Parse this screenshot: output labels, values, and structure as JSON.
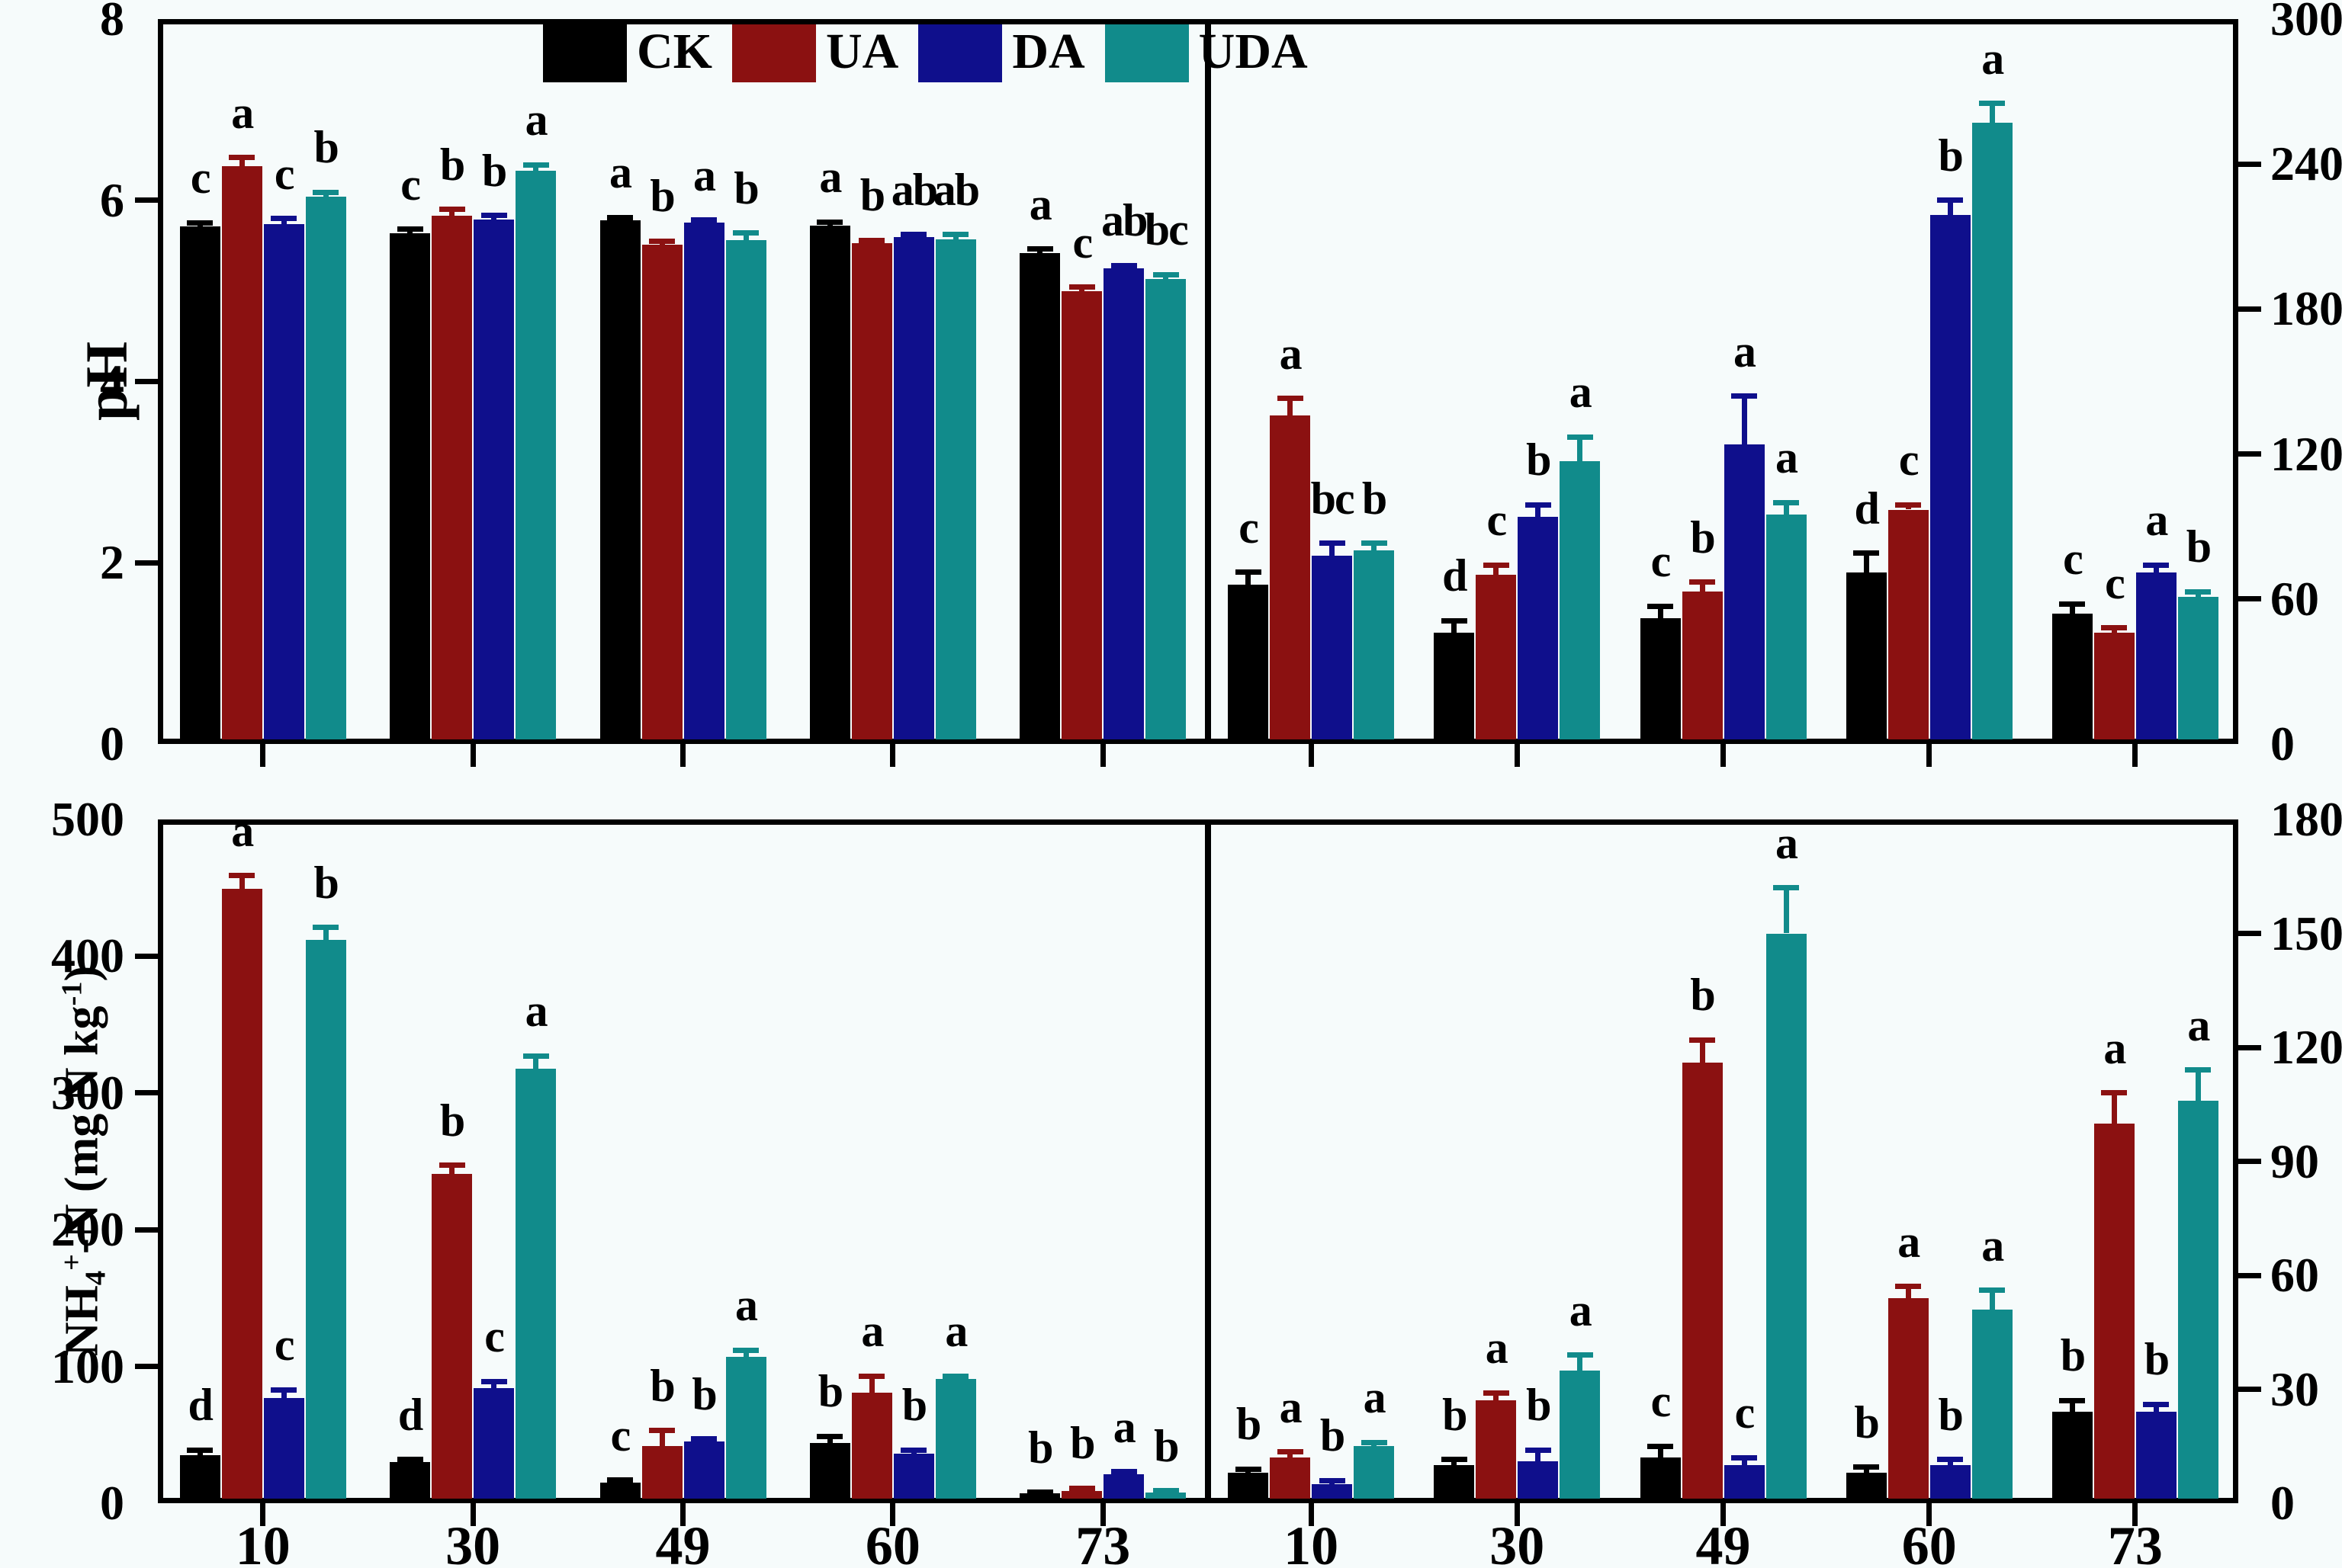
{
  "figure": {
    "background": "#f6fbfb",
    "frame_color": "#000000"
  },
  "legend": {
    "items": [
      {
        "label": "CK",
        "color": "#000000"
      },
      {
        "label": "UA",
        "color": "#8b1111"
      },
      {
        "label": "DA",
        "color": "#0f0f8c"
      },
      {
        "label": "UDA",
        "color": "#118b8b"
      }
    ]
  },
  "axes": {
    "ph_title": "pH",
    "nh4_title_parts": {
      "p1": "NH",
      "sub4": "4",
      "supPlus": "+",
      "p2": "-N (mg N kg",
      "supMinus1": "-1",
      "p3": ")"
    }
  },
  "chart_data": [
    {
      "type": "bar",
      "panel": "top-left",
      "ylabel": "pH",
      "categories": [
        "10",
        "30",
        "49",
        "60",
        "73"
      ],
      "ylim": [
        0,
        8
      ],
      "yticks": [
        0,
        2,
        4,
        6,
        8
      ],
      "ytick_side": "left",
      "series": [
        {
          "name": "CK",
          "color": "#000000",
          "values": [
            5.71,
            5.64,
            5.78,
            5.72,
            5.42
          ],
          "errors": [
            0.04,
            0.04,
            0.03,
            0.04,
            0.04
          ],
          "letters": [
            "c",
            "c",
            "a",
            "a",
            "a"
          ]
        },
        {
          "name": "UA",
          "color": "#8b1111",
          "values": [
            6.38,
            5.83,
            5.51,
            5.53,
            5.0
          ],
          "errors": [
            0.09,
            0.07,
            0.04,
            0.03,
            0.04
          ],
          "letters": [
            "a",
            "b",
            "b",
            "b",
            "c"
          ]
        },
        {
          "name": "DA",
          "color": "#0f0f8c",
          "values": [
            5.74,
            5.79,
            5.75,
            5.59,
            5.25
          ],
          "errors": [
            0.06,
            0.04,
            0.03,
            0.03,
            0.03
          ],
          "letters": [
            "c",
            "b",
            "a",
            "ab",
            "ab"
          ]
        },
        {
          "name": "UDA",
          "color": "#118b8b",
          "values": [
            6.04,
            6.33,
            5.56,
            5.57,
            5.13
          ],
          "errors": [
            0.05,
            0.06,
            0.08,
            0.05,
            0.05
          ],
          "letters": [
            "b",
            "a",
            "b",
            "ab",
            "bc"
          ]
        }
      ]
    },
    {
      "type": "bar",
      "panel": "top-right",
      "ylabel": "",
      "categories": [
        "10",
        "30",
        "49",
        "60",
        "73"
      ],
      "ylim": [
        0,
        300
      ],
      "yticks": [
        0,
        60,
        120,
        180,
        240,
        300
      ],
      "ytick_side": "right",
      "series": [
        {
          "name": "CK",
          "color": "#000000",
          "values": [
            66,
            46,
            52,
            71,
            54
          ],
          "errors": [
            5,
            5,
            5,
            8,
            4
          ],
          "letters": [
            "c",
            "d",
            "c",
            "d",
            "c"
          ]
        },
        {
          "name": "UA",
          "color": "#8b1111",
          "values": [
            136,
            70,
            63,
            97,
            46
          ],
          "errors": [
            7,
            4,
            4,
            2,
            2
          ],
          "letters": [
            "a",
            "c",
            "b",
            "c",
            "c"
          ]
        },
        {
          "name": "DA",
          "color": "#0f0f8c",
          "values": [
            78,
            94,
            124,
            219,
            71
          ],
          "errors": [
            5,
            5,
            20,
            6,
            3
          ],
          "letters": [
            "bc",
            "b",
            "a",
            "b",
            "a"
          ]
        },
        {
          "name": "UDA",
          "color": "#118b8b",
          "values": [
            80,
            117,
            95,
            257,
            61
          ],
          "errors": [
            3,
            10,
            5,
            8,
            2
          ],
          "letters": [
            "b",
            "a",
            "a",
            "a",
            "b"
          ]
        }
      ]
    },
    {
      "type": "bar",
      "panel": "bottom-left",
      "ylabel": "NH4+-N (mg N kg-1)",
      "categories": [
        "10",
        "30",
        "49",
        "60",
        "73"
      ],
      "ylim": [
        0,
        500
      ],
      "yticks": [
        0,
        100,
        200,
        300,
        400,
        500
      ],
      "ytick_side": "left",
      "series": [
        {
          "name": "CK",
          "color": "#000000",
          "values": [
            35,
            30,
            15,
            44,
            7
          ],
          "errors": [
            4,
            2,
            2,
            5,
            1
          ],
          "letters": [
            "d",
            "d",
            "c",
            "b",
            "b"
          ]
        },
        {
          "name": "UA",
          "color": "#8b1111",
          "values": [
            449,
            241,
            42,
            81,
            9
          ],
          "errors": [
            10,
            6,
            11,
            12,
            2
          ],
          "letters": [
            "a",
            "b",
            "b",
            "a",
            "b"
          ]
        },
        {
          "name": "DA",
          "color": "#0f0f8c",
          "values": [
            77,
            84,
            45,
            36,
            21
          ],
          "errors": [
            6,
            5,
            2,
            3,
            2
          ],
          "letters": [
            "c",
            "c",
            "b",
            "b",
            "a"
          ]
        },
        {
          "name": "UDA",
          "color": "#118b8b",
          "values": [
            412,
            318,
            107,
            91,
            8
          ],
          "errors": [
            9,
            9,
            5,
            2,
            1
          ],
          "letters": [
            "b",
            "a",
            "a",
            "a",
            "b"
          ]
        }
      ]
    },
    {
      "type": "bar",
      "panel": "bottom-right",
      "ylabel": "",
      "categories": [
        "10",
        "30",
        "49",
        "60",
        "73"
      ],
      "ylim": [
        0,
        180
      ],
      "yticks": [
        0,
        30,
        60,
        90,
        120,
        150,
        180
      ],
      "ytick_side": "right",
      "series": [
        {
          "name": "CK",
          "color": "#000000",
          "values": [
            8,
            10,
            12,
            8,
            24
          ],
          "errors": [
            1,
            1.5,
            3,
            1.5,
            3
          ],
          "letters": [
            "b",
            "b",
            "c",
            "b",
            "b"
          ]
        },
        {
          "name": "UA",
          "color": "#8b1111",
          "values": [
            12,
            27,
            116,
            54,
            100
          ],
          "errors": [
            1.5,
            2,
            6,
            3,
            8
          ],
          "letters": [
            "a",
            "a",
            "b",
            "a",
            "a"
          ]
        },
        {
          "name": "DA",
          "color": "#0f0f8c",
          "values": [
            5,
            11,
            10,
            10,
            24
          ],
          "errors": [
            1,
            3,
            2,
            1.5,
            2
          ],
          "letters": [
            "b",
            "b",
            "c",
            "b",
            "b"
          ]
        },
        {
          "name": "UDA",
          "color": "#118b8b",
          "values": [
            15,
            35,
            150,
            51,
            106
          ],
          "errors": [
            1,
            4,
            12,
            5,
            8
          ],
          "letters": [
            "a",
            "a",
            "a",
            "a",
            "a"
          ]
        }
      ]
    }
  ]
}
